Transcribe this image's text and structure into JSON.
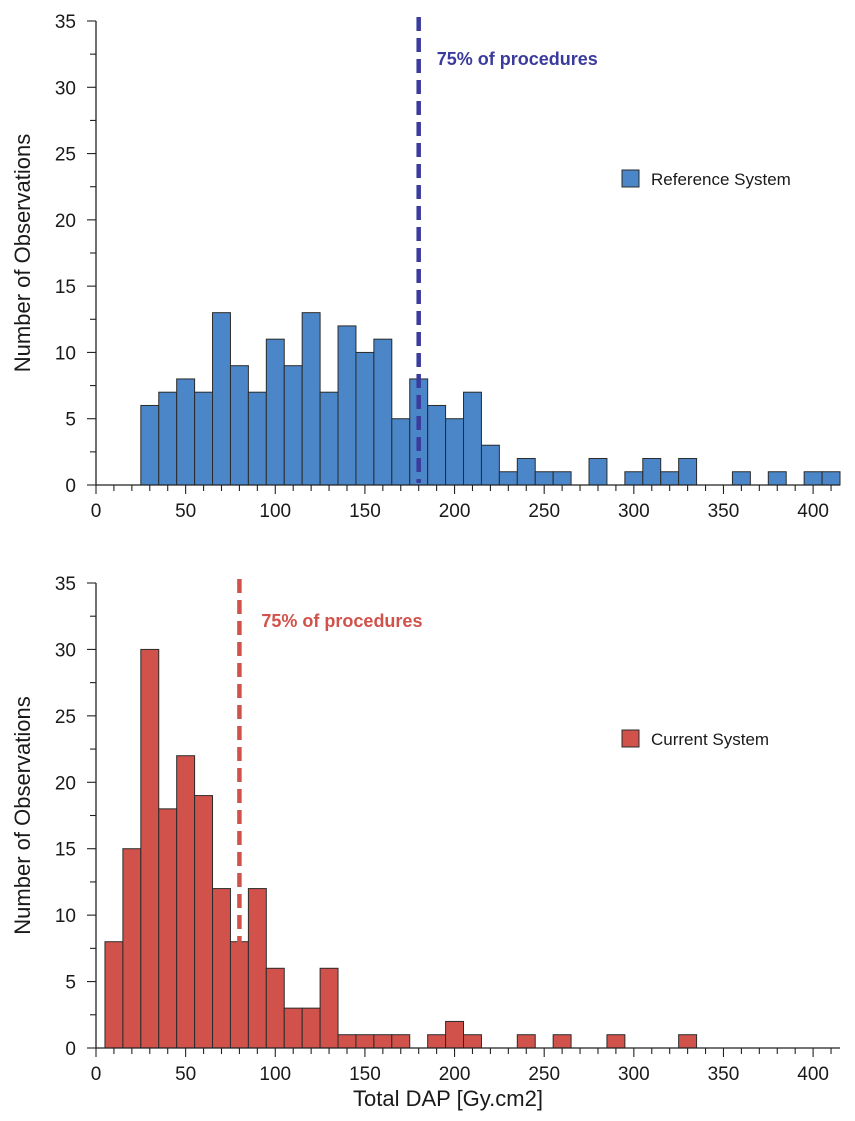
{
  "chart_data": [
    {
      "type": "bar",
      "xlabel": "",
      "ylabel": "Number of Observations",
      "xlim": [
        0,
        415
      ],
      "ylim": [
        0,
        35
      ],
      "bin_width": 10,
      "xticks": [
        "0",
        "50",
        "100",
        "150",
        "200",
        "250",
        "300",
        "350",
        "400"
      ],
      "yticks": [
        "0",
        "5",
        "10",
        "15",
        "20",
        "25",
        "30",
        "35"
      ],
      "series": [
        {
          "name": "Reference System",
          "color": "#4a86c8",
          "bins": [
            {
              "x0": 25,
              "x1": 35,
              "y": 6
            },
            {
              "x0": 35,
              "x1": 45,
              "y": 7
            },
            {
              "x0": 45,
              "x1": 55,
              "y": 8
            },
            {
              "x0": 55,
              "x1": 65,
              "y": 7
            },
            {
              "x0": 65,
              "x1": 75,
              "y": 13
            },
            {
              "x0": 75,
              "x1": 85,
              "y": 9
            },
            {
              "x0": 85,
              "x1": 95,
              "y": 7
            },
            {
              "x0": 95,
              "x1": 105,
              "y": 11
            },
            {
              "x0": 105,
              "x1": 115,
              "y": 9
            },
            {
              "x0": 115,
              "x1": 125,
              "y": 13
            },
            {
              "x0": 125,
              "x1": 135,
              "y": 7
            },
            {
              "x0": 135,
              "x1": 145,
              "y": 12
            },
            {
              "x0": 145,
              "x1": 155,
              "y": 10
            },
            {
              "x0": 155,
              "x1": 165,
              "y": 11
            },
            {
              "x0": 165,
              "x1": 175,
              "y": 5
            },
            {
              "x0": 175,
              "x1": 185,
              "y": 8
            },
            {
              "x0": 185,
              "x1": 195,
              "y": 6
            },
            {
              "x0": 195,
              "x1": 205,
              "y": 5
            },
            {
              "x0": 205,
              "x1": 215,
              "y": 7
            },
            {
              "x0": 215,
              "x1": 225,
              "y": 3
            },
            {
              "x0": 225,
              "x1": 235,
              "y": 1
            },
            {
              "x0": 235,
              "x1": 245,
              "y": 2
            },
            {
              "x0": 245,
              "x1": 255,
              "y": 1
            },
            {
              "x0": 255,
              "x1": 265,
              "y": 1
            },
            {
              "x0": 275,
              "x1": 285,
              "y": 2
            },
            {
              "x0": 295,
              "x1": 305,
              "y": 1
            },
            {
              "x0": 305,
              "x1": 315,
              "y": 2
            },
            {
              "x0": 315,
              "x1": 325,
              "y": 1
            },
            {
              "x0": 325,
              "x1": 335,
              "y": 2
            },
            {
              "x0": 355,
              "x1": 365,
              "y": 1
            },
            {
              "x0": 375,
              "x1": 385,
              "y": 1
            },
            {
              "x0": 395,
              "x1": 405,
              "y": 1
            },
            {
              "x0": 405,
              "x1": 415,
              "y": 1
            }
          ]
        }
      ],
      "reference_line": {
        "x": 180,
        "label": "75% of procedures",
        "color": "#3b3b9e"
      },
      "legend_position": "right"
    },
    {
      "type": "bar",
      "xlabel": "Total DAP [Gy.cm2]",
      "ylabel": "Number of Observations",
      "xlim": [
        0,
        415
      ],
      "ylim": [
        0,
        35
      ],
      "bin_width": 10,
      "xticks": [
        "0",
        "50",
        "100",
        "150",
        "200",
        "250",
        "300",
        "350",
        "400"
      ],
      "yticks": [
        "0",
        "5",
        "10",
        "15",
        "20",
        "25",
        "30",
        "35"
      ],
      "series": [
        {
          "name": "Current System",
          "color": "#d1524b",
          "bins": [
            {
              "x0": 5,
              "x1": 15,
              "y": 8
            },
            {
              "x0": 15,
              "x1": 25,
              "y": 15
            },
            {
              "x0": 25,
              "x1": 35,
              "y": 30
            },
            {
              "x0": 35,
              "x1": 45,
              "y": 18
            },
            {
              "x0": 45,
              "x1": 55,
              "y": 22
            },
            {
              "x0": 55,
              "x1": 65,
              "y": 19
            },
            {
              "x0": 65,
              "x1": 75,
              "y": 12
            },
            {
              "x0": 75,
              "x1": 85,
              "y": 8
            },
            {
              "x0": 85,
              "x1": 95,
              "y": 12
            },
            {
              "x0": 95,
              "x1": 105,
              "y": 6
            },
            {
              "x0": 105,
              "x1": 115,
              "y": 3
            },
            {
              "x0": 115,
              "x1": 125,
              "y": 3
            },
            {
              "x0": 125,
              "x1": 135,
              "y": 6
            },
            {
              "x0": 135,
              "x1": 145,
              "y": 1
            },
            {
              "x0": 145,
              "x1": 155,
              "y": 1
            },
            {
              "x0": 155,
              "x1": 165,
              "y": 1
            },
            {
              "x0": 165,
              "x1": 175,
              "y": 1
            },
            {
              "x0": 185,
              "x1": 195,
              "y": 1
            },
            {
              "x0": 195,
              "x1": 205,
              "y": 2
            },
            {
              "x0": 205,
              "x1": 215,
              "y": 1
            },
            {
              "x0": 235,
              "x1": 245,
              "y": 1
            },
            {
              "x0": 255,
              "x1": 265,
              "y": 1
            },
            {
              "x0": 285,
              "x1": 295,
              "y": 1
            },
            {
              "x0": 325,
              "x1": 335,
              "y": 1
            }
          ]
        }
      ],
      "reference_line": {
        "x": 80,
        "label": "75% of procedures",
        "color": "#d1524b"
      },
      "legend_position": "right"
    }
  ]
}
